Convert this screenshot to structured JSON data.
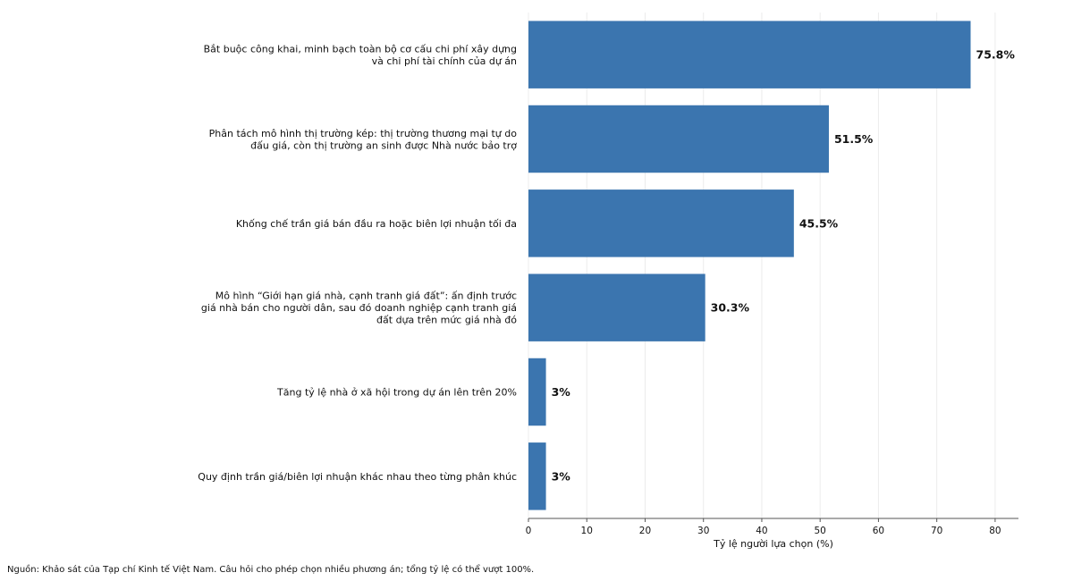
{
  "chart_data": {
    "type": "bar",
    "orientation": "horizontal",
    "categories": [
      [
        "Bắt buộc công khai, minh bạch toàn bộ cơ cấu chi phí xây dựng",
        "và chi phí tài chính của dự án"
      ],
      [
        "Phân tách mô hình thị trường kép: thị trường thương mại tự do",
        "đấu giá, còn thị trường an sinh được Nhà nước bảo trợ"
      ],
      [
        "Khống chế trần giá bán đầu ra hoặc biên lợi nhuận tối đa"
      ],
      [
        "Mô hình “Giới hạn giá nhà, cạnh tranh giá đất”: ấn định trước",
        "giá nhà bán cho người dân, sau đó doanh nghiệp cạnh tranh giá",
        "đất dựa trên mức giá nhà đó"
      ],
      [
        "Tăng tỷ lệ nhà ở xã hội trong dự án lên trên 20%"
      ],
      [
        "Quy định trần giá/biên lợi nhuận khác nhau theo từng phân khúc"
      ]
    ],
    "values": [
      75.8,
      51.5,
      45.5,
      30.3,
      3,
      3
    ],
    "value_labels": [
      "75.8%",
      "51.5%",
      "45.5%",
      "30.3%",
      "3%",
      "3%"
    ],
    "xlabel": "Tỷ lệ người lựa chọn (%)",
    "ylabel": "",
    "xlim": [
      0,
      84
    ],
    "xticks": [
      0,
      10,
      20,
      30,
      40,
      50,
      60,
      70,
      80
    ],
    "grid": "vertical",
    "bar_color": "#3b75af"
  },
  "source_note": "Nguồn: Khảo sát của Tạp chí Kinh tế Việt Nam. Câu hỏi cho phép chọn nhiều phương án; tổng tỷ lệ có thể vượt 100%."
}
